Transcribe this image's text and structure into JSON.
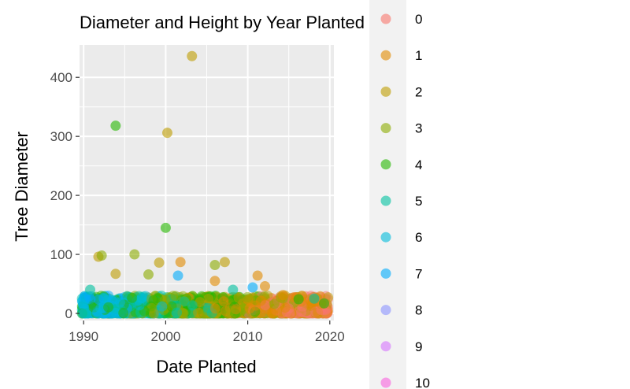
{
  "chart_data": {
    "type": "scatter",
    "title": "Diameter and Height by Year Planted",
    "xlabel": "Date Planted",
    "ylabel": "Tree Diameter",
    "xlim": [
      1989.5,
      2020.5
    ],
    "ylim": [
      -12,
      455
    ],
    "x_ticks": [
      1990,
      2000,
      2010,
      2020
    ],
    "y_ticks": [
      0,
      100,
      200,
      300,
      400
    ],
    "grid": true,
    "legend": {
      "placement": "right",
      "entries": [
        {
          "label": "0",
          "color": "#F8766D"
        },
        {
          "label": "1",
          "color": "#E18A00"
        },
        {
          "label": "2",
          "color": "#BE9C00"
        },
        {
          "label": "3",
          "color": "#8CAB00"
        },
        {
          "label": "4",
          "color": "#24B700"
        },
        {
          "label": "5",
          "color": "#00C1A0"
        },
        {
          "label": "6",
          "color": "#00BBDA"
        },
        {
          "label": "7",
          "color": "#00ACFC"
        },
        {
          "label": "8",
          "color": "#8B93FF"
        },
        {
          "label": "9",
          "color": "#D575FE"
        },
        {
          "label": "10",
          "color": "#F962DD"
        }
      ]
    },
    "outliers": [
      {
        "x": 2003.2,
        "y": 436,
        "group": "2"
      },
      {
        "x": 1993.9,
        "y": 318,
        "group": "4"
      },
      {
        "x": 2000.2,
        "y": 306,
        "group": "2"
      },
      {
        "x": 2000.0,
        "y": 145,
        "group": "4"
      },
      {
        "x": 1996.2,
        "y": 100,
        "group": "3"
      },
      {
        "x": 1991.8,
        "y": 96,
        "group": "2"
      },
      {
        "x": 1992.2,
        "y": 98,
        "group": "3"
      },
      {
        "x": 2001.8,
        "y": 87,
        "group": "1"
      },
      {
        "x": 1999.2,
        "y": 86,
        "group": "2"
      },
      {
        "x": 2007.2,
        "y": 87,
        "group": "2"
      },
      {
        "x": 2006.0,
        "y": 82,
        "group": "3"
      },
      {
        "x": 1993.9,
        "y": 67,
        "group": "2"
      },
      {
        "x": 1997.9,
        "y": 66,
        "group": "3"
      },
      {
        "x": 2001.5,
        "y": 64,
        "group": "7"
      },
      {
        "x": 2011.2,
        "y": 64,
        "group": "1"
      },
      {
        "x": 2006.0,
        "y": 55,
        "group": "1"
      },
      {
        "x": 2012.1,
        "y": 46,
        "group": "1"
      },
      {
        "x": 2010.6,
        "y": 44,
        "group": "7"
      },
      {
        "x": 1990.8,
        "y": 40,
        "group": "5"
      },
      {
        "x": 2008.2,
        "y": 40,
        "group": "5"
      },
      {
        "x": 2018.1,
        "y": 25,
        "group": "5"
      },
      {
        "x": 2016.2,
        "y": 24,
        "group": "4"
      },
      {
        "x": 2019.3,
        "y": 17,
        "group": "4"
      },
      {
        "x": 2014.3,
        "y": 31,
        "group": "1"
      }
    ],
    "dense_cluster": {
      "x_range": [
        1989.8,
        2019.8
      ],
      "y_range": [
        0,
        40
      ],
      "note": "thousands of overlapping points"
    }
  }
}
